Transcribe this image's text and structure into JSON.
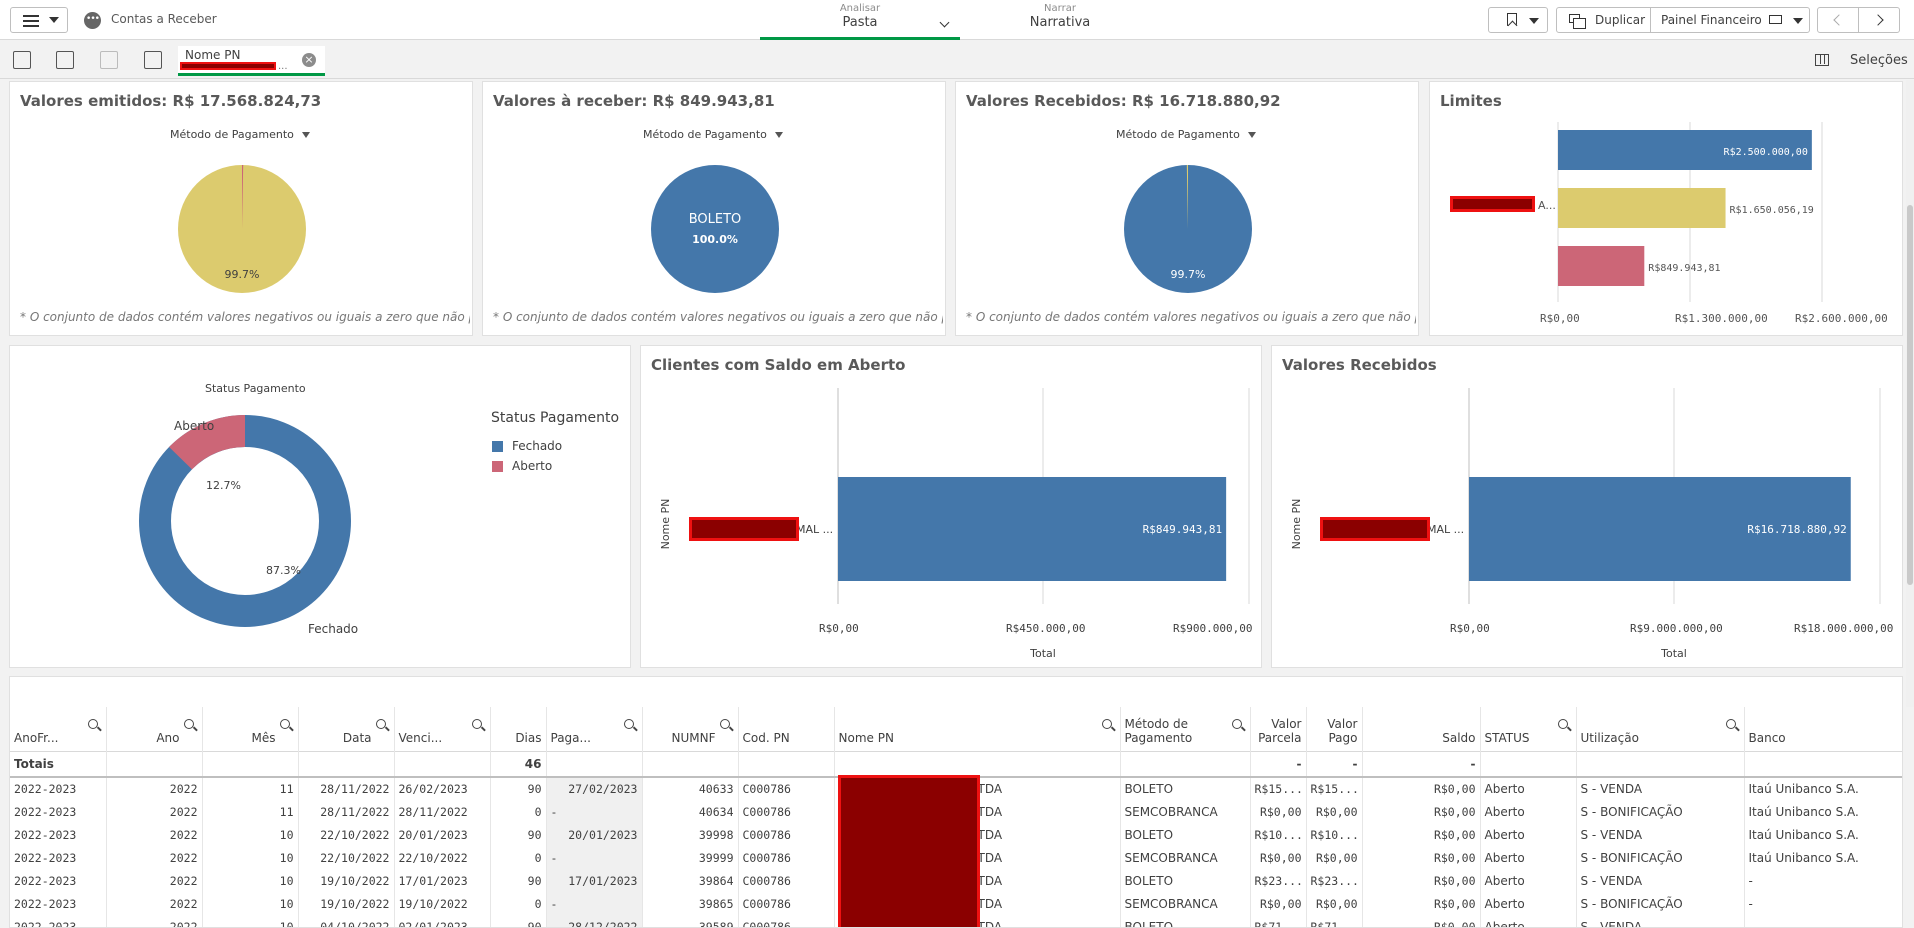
{
  "app": {
    "title": "Contas a Receber"
  },
  "nav": {
    "analisar_small": "Analisar",
    "analisar_big": "Pasta",
    "narrar_small": "Narrar",
    "narrar_big": "Narrativa"
  },
  "toolbar": {
    "duplicate_label": "Duplicar",
    "sheet_label": "Painel Financeiro"
  },
  "selections": {
    "chip_title": "Nome PN",
    "chip_value": "...",
    "label": "Seleções"
  },
  "kpis": [
    {
      "title": "Valores emitidos: R$ 17.568.824,73",
      "dimension": "Método de Pagamento",
      "pie_label": "",
      "pie_pct": "99.7%",
      "footnote": "* O conjunto de dados contém valores negativos ou iguais a zero que não po..."
    },
    {
      "title": "Valores à receber: R$ 849.943,81",
      "dimension": "Método de Pagamento",
      "pie_label": "BOLETO",
      "pie_pct": "100.0%",
      "footnote": "* O conjunto de dados contém valores negativos ou iguais a zero que não po..."
    },
    {
      "title": "Valores Recebidos: R$ 16.718.880,92",
      "dimension": "Método de Pagamento",
      "pie_label": "",
      "pie_pct": "99.7%",
      "footnote": "* O conjunto de dados contém valores negativos ou iguais a zero que não po..."
    }
  ],
  "limites": {
    "title": "Limites",
    "category_suffix": "A...",
    "bars": [
      {
        "value": 2500000,
        "label": "R$2.500.000,00",
        "color": "#4477aa"
      },
      {
        "value": 1650056.19,
        "label": "R$1.650.056,19",
        "color": "#dccb6e"
      },
      {
        "value": 849943.81,
        "label": "R$849.943,81",
        "color": "#cc6677"
      }
    ],
    "ticks": [
      "R$0,00",
      "R$1.300.000,00",
      "R$2.600.000,00"
    ]
  },
  "chart_data": [
    {
      "type": "pie",
      "title": "Valores emitidos: R$ 17.568.824,73",
      "slices": [
        {
          "name": "",
          "value": 99.7,
          "color": "#dccb6e"
        },
        {
          "name": "",
          "value": 0.3,
          "color": "#cc6677"
        }
      ]
    },
    {
      "type": "pie",
      "title": "Valores à receber: R$ 849.943,81",
      "slices": [
        {
          "name": "BOLETO",
          "value": 100.0,
          "color": "#4477aa"
        }
      ]
    },
    {
      "type": "pie",
      "title": "Valores Recebidos: R$ 16.718.880,92",
      "slices": [
        {
          "name": "",
          "value": 99.7,
          "color": "#4477aa"
        },
        {
          "name": "",
          "value": 0.3,
          "color": "#dccb6e"
        }
      ]
    },
    {
      "type": "bar",
      "title": "Limites",
      "values": [
        2500000,
        1650056.19,
        849943.81
      ],
      "xlim": [
        0,
        2600000
      ]
    },
    {
      "type": "pie",
      "title": "Status Pagamento",
      "legend_title": "Status Pagamento",
      "slices": [
        {
          "name": "Fechado",
          "value": 87.3,
          "label": "87.3%",
          "color": "#4477aa"
        },
        {
          "name": "Aberto",
          "value": 12.7,
          "label": "12.7%",
          "color": "#cc6677"
        }
      ]
    },
    {
      "type": "bar",
      "title": "Clientes com Saldo em Aberto",
      "ylabel": "Nome PN",
      "xlabel": "Total",
      "category_suffix": "MAL ...",
      "values": [
        849943.81
      ],
      "value_label": "R$849.943,81",
      "xlim": [
        0,
        900000
      ],
      "ticks": [
        "R$0,00",
        "R$450.000,00",
        "R$900.000,00"
      ]
    },
    {
      "type": "bar",
      "title": "Valores Recebidos",
      "ylabel": "Nome PN",
      "xlabel": "Total",
      "category_suffix": "MAL ...",
      "values": [
        16718880.92
      ],
      "value_label": "R$16.718.880,92",
      "xlim": [
        0,
        18000000
      ],
      "ticks": [
        "R$0,00",
        "R$9.000.000,00",
        "R$18.000.000,00"
      ]
    }
  ],
  "status_chart": {
    "title": "Status Pagamento",
    "legend_title": "Status Pagamento",
    "fechado": "Fechado",
    "aberto": "Aberto",
    "fechado_pct": "87.3%",
    "aberto_pct": "12.7%"
  },
  "table": {
    "headers": [
      "AnoFr...",
      "Ano",
      "Mês",
      "Data",
      "Venci...",
      "Dias",
      "Paga...",
      "NUMNF",
      "Cod. PN",
      "Nome PN",
      "Método de Pagamento",
      "Valor Parcela",
      "Valor Pago",
      "Saldo",
      "STATUS",
      "Utilização",
      "Banco"
    ],
    "totals": [
      "Totais",
      "",
      "",
      "",
      "",
      "46",
      "",
      "",
      "",
      "",
      "",
      "-",
      "-",
      "-",
      "",
      "",
      ""
    ],
    "rows": [
      [
        "2022-2023",
        "2022",
        "11",
        "28/11/2022",
        "26/02/2023",
        "90",
        "27/02/2023",
        "40633",
        "C000786",
        "LTDA",
        "BOLETO",
        "R$15...",
        "R$15...",
        "R$0,00",
        "Aberto",
        "S - VENDA",
        "Itaú Unibanco S.A."
      ],
      [
        "2022-2023",
        "2022",
        "11",
        "28/11/2022",
        "28/11/2022",
        "0",
        "-",
        "40634",
        "C000786",
        "LTDA",
        "SEMCOBRANCA",
        "R$0,00",
        "R$0,00",
        "R$0,00",
        "Aberto",
        "S - BONIFICAÇÃO",
        "Itaú Unibanco S.A."
      ],
      [
        "2022-2023",
        "2022",
        "10",
        "22/10/2022",
        "20/01/2023",
        "90",
        "20/01/2023",
        "39998",
        "C000786",
        "LTDA",
        "BOLETO",
        "R$10...",
        "R$10...",
        "R$0,00",
        "Aberto",
        "S - VENDA",
        "Itaú Unibanco S.A."
      ],
      [
        "2022-2023",
        "2022",
        "10",
        "22/10/2022",
        "22/10/2022",
        "0",
        "-",
        "39999",
        "C000786",
        "LTDA",
        "SEMCOBRANCA",
        "R$0,00",
        "R$0,00",
        "R$0,00",
        "Aberto",
        "S - BONIFICAÇÃO",
        "Itaú Unibanco S.A."
      ],
      [
        "2022-2023",
        "2022",
        "10",
        "19/10/2022",
        "17/01/2023",
        "90",
        "17/01/2023",
        "39864",
        "C000786",
        "LTDA",
        "BOLETO",
        "R$23...",
        "R$23...",
        "R$0,00",
        "Aberto",
        "S - VENDA",
        "-"
      ],
      [
        "2022-2023",
        "2022",
        "10",
        "19/10/2022",
        "19/10/2022",
        "0",
        "-",
        "39865",
        "C000786",
        "LTDA",
        "SEMCOBRANCA",
        "R$0,00",
        "R$0,00",
        "R$0,00",
        "Aberto",
        "S - BONIFICAÇÃO",
        "-"
      ],
      [
        "2022-2023",
        "2022",
        "10",
        "04/10/2022",
        "02/01/2023",
        "90",
        "28/12/2022",
        "39589",
        "C000786",
        "LTDA",
        "BOLETO",
        "R$71...",
        "R$71...",
        "R$0,00",
        "Aberto",
        "S - VENDA",
        "-"
      ]
    ]
  }
}
